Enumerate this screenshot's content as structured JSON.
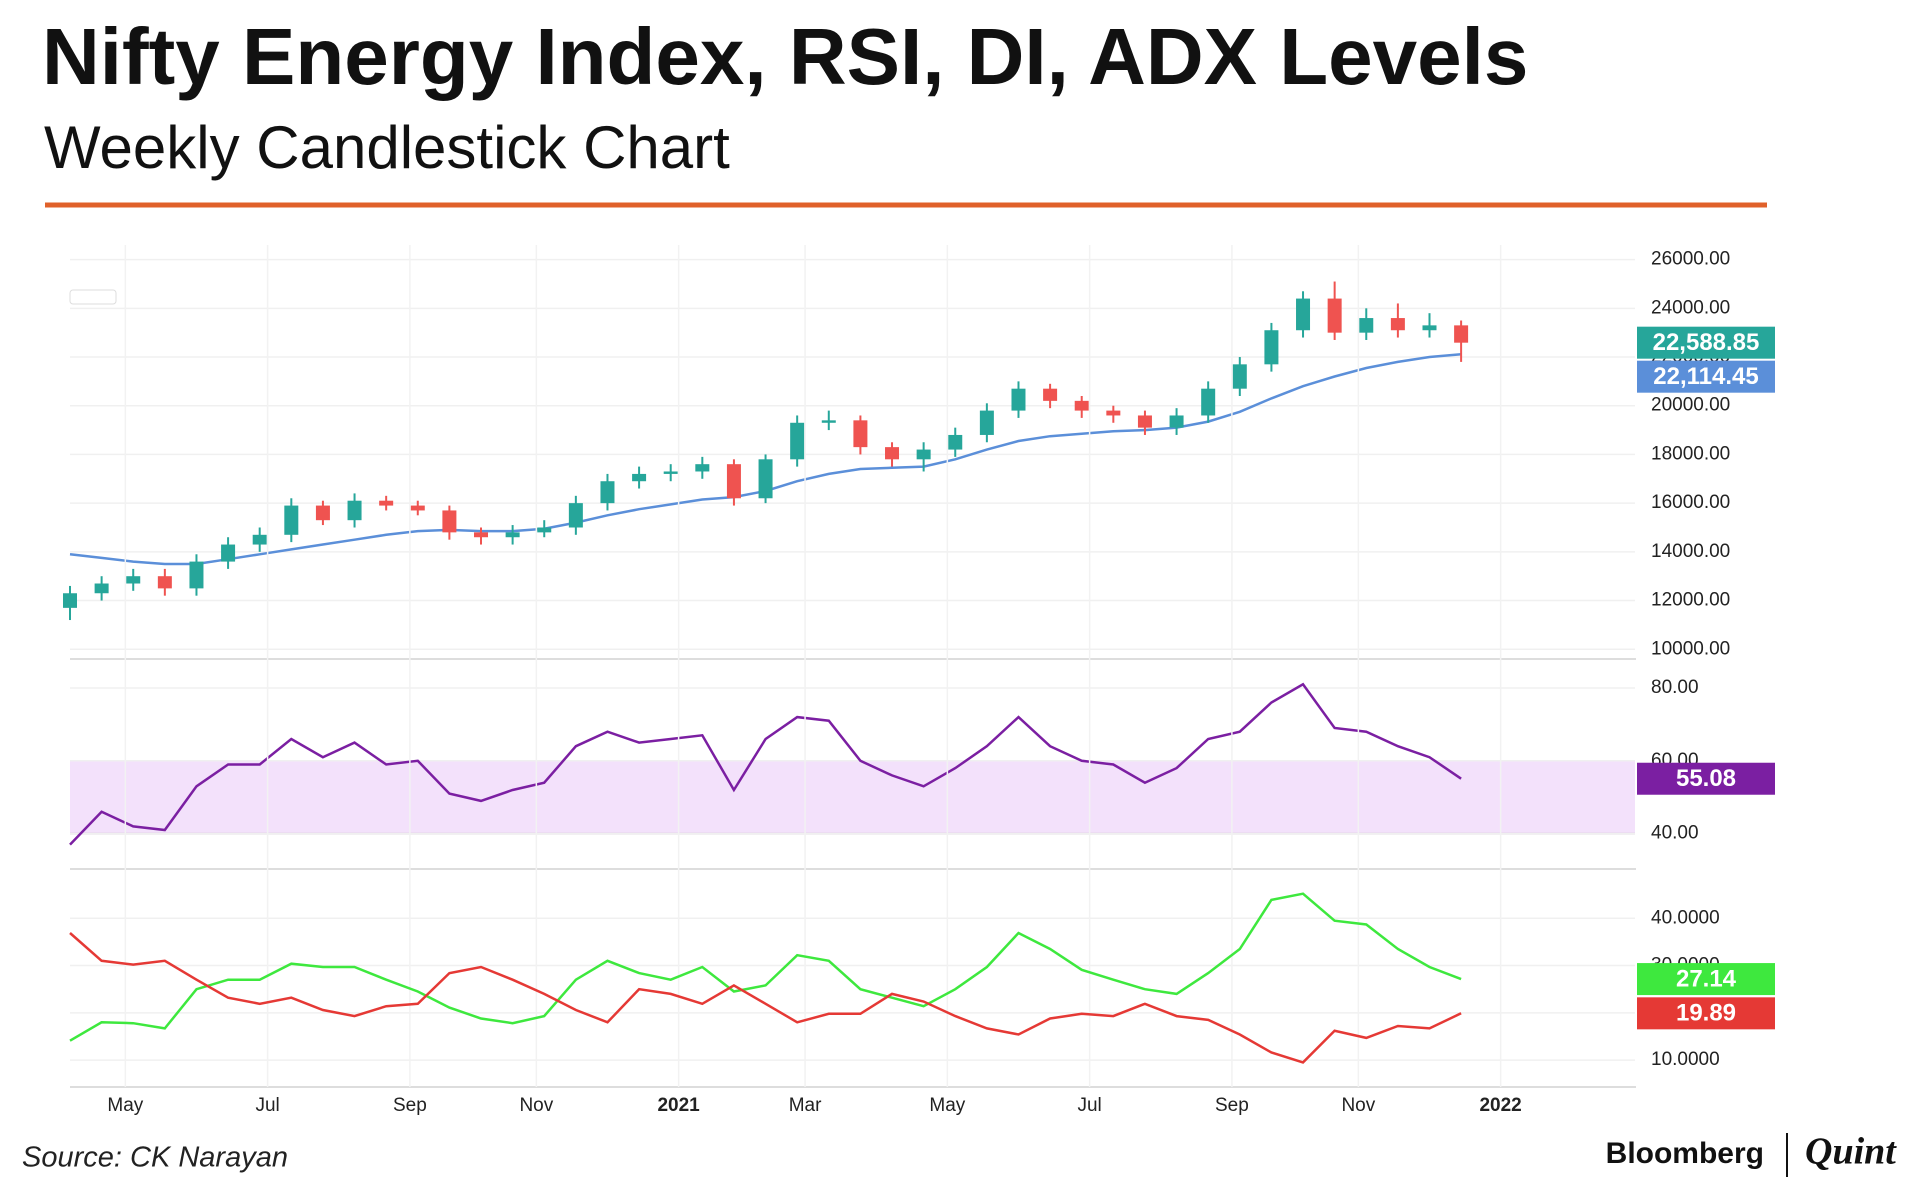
{
  "header": {
    "title": "Nifty Energy Index, RSI, DI, ADX Levels",
    "subtitle": "Weekly Candlestick Chart"
  },
  "footer": {
    "source": "Source: CK Narayan",
    "brand": "Bloomberg",
    "brand2": "Quint"
  },
  "chart_data": [
    {
      "type": "candlestick",
      "xlim": [
        0,
        99
      ],
      "ylim": [
        9600,
        26600
      ],
      "yticks": [
        {
          "value": 10000,
          "label": "10000.00"
        },
        {
          "value": 12000,
          "label": "12000.00"
        },
        {
          "value": 14000,
          "label": "14000.00"
        },
        {
          "value": 16000,
          "label": "16000.00"
        },
        {
          "value": 18000,
          "label": "18000.00"
        },
        {
          "value": 20000,
          "label": "20000.00"
        },
        {
          "value": 22000,
          "label": "22000.00"
        },
        {
          "value": 24000,
          "label": "24000.00"
        },
        {
          "value": 26000,
          "label": "26000.00"
        }
      ],
      "up_color": "#26a69a",
      "down_color": "#ef5350",
      "grid": true,
      "x": [
        0,
        2,
        4,
        6,
        8,
        10,
        12,
        14,
        16,
        18,
        20,
        22,
        24,
        26,
        28,
        30,
        32,
        34,
        36,
        38,
        40,
        42,
        44,
        46,
        48,
        50,
        52,
        54,
        56,
        58,
        60,
        62,
        64,
        66,
        68,
        70,
        72,
        74,
        76,
        78,
        80,
        82,
        84,
        86,
        88
      ],
      "open": [
        11700,
        12300,
        12700,
        13000,
        12500,
        13600,
        14300,
        14700,
        15900,
        15300,
        16100,
        15900,
        15700,
        14800,
        14600,
        14800,
        15000,
        16000,
        16900,
        17200,
        17300,
        17600,
        16200,
        17800,
        19300,
        19400,
        18300,
        17800,
        18200,
        18800,
        19800,
        20700,
        20200,
        19800,
        19600,
        19100,
        19600,
        20700,
        21700,
        23100,
        24400,
        23000,
        23600,
        23100,
        23300
      ],
      "high": [
        12600,
        13000,
        13300,
        13300,
        13900,
        14600,
        15000,
        16200,
        16100,
        16400,
        16300,
        16100,
        15900,
        15000,
        15100,
        15300,
        16300,
        17200,
        17500,
        17600,
        17900,
        17800,
        18000,
        19600,
        19800,
        19600,
        18500,
        18500,
        19100,
        20100,
        21000,
        20900,
        20400,
        20000,
        19800,
        19900,
        21000,
        22000,
        23400,
        24700,
        25100,
        24000,
        24200,
        23800,
        23500
      ],
      "low": [
        11200,
        12000,
        12400,
        12200,
        12200,
        13300,
        14000,
        14400,
        15100,
        15000,
        15700,
        15500,
        14500,
        14300,
        14300,
        14600,
        14700,
        15700,
        16600,
        16900,
        17000,
        15900,
        16000,
        17500,
        19000,
        18000,
        17500,
        17300,
        17900,
        18500,
        19500,
        19900,
        19500,
        19300,
        18800,
        18800,
        19300,
        20400,
        21400,
        22800,
        22700,
        22700,
        22800,
        22800,
        21800
      ],
      "close": [
        12300,
        12700,
        13000,
        12500,
        13600,
        14300,
        14700,
        15900,
        15300,
        16100,
        15900,
        15700,
        14800,
        14600,
        14800,
        15000,
        16000,
        16900,
        17200,
        17300,
        17600,
        16200,
        17800,
        19300,
        19400,
        18300,
        17800,
        18200,
        18800,
        19800,
        20700,
        20200,
        19800,
        19600,
        19100,
        19600,
        20700,
        21700,
        23100,
        24400,
        23000,
        23600,
        23100,
        23300,
        22588.85
      ],
      "close_label": "22,588.85",
      "ma": {
        "color": "#5b8fd9",
        "last_label": "22,114.45",
        "values": [
          13900,
          13750,
          13600,
          13500,
          13500,
          13700,
          13900,
          14100,
          14300,
          14500,
          14700,
          14850,
          14900,
          14850,
          14850,
          14950,
          15200,
          15500,
          15750,
          15950,
          16150,
          16250,
          16500,
          16900,
          17200,
          17400,
          17450,
          17500,
          17800,
          18200,
          18550,
          18750,
          18850,
          18950,
          19000,
          19100,
          19350,
          19750,
          20300,
          20800,
          21200,
          21550,
          21800,
          22000,
          22114.45
        ]
      }
    },
    {
      "type": "line",
      "xlim": [
        0,
        99
      ],
      "ylim": [
        30.3,
        87.4
      ],
      "yticks": [
        {
          "value": 40,
          "label": "40.00"
        },
        {
          "value": 60,
          "label": "60.00"
        },
        {
          "value": 80,
          "label": "80.00"
        }
      ],
      "band": [
        40,
        60
      ],
      "band_color": "#f3e1fb",
      "grid": true,
      "x": [
        0,
        2,
        4,
        6,
        8,
        10,
        12,
        14,
        16,
        18,
        20,
        22,
        24,
        26,
        28,
        30,
        32,
        34,
        36,
        38,
        40,
        42,
        44,
        46,
        48,
        50,
        52,
        54,
        56,
        58,
        60,
        62,
        64,
        66,
        68,
        70,
        72,
        74,
        76,
        78,
        80,
        82,
        84,
        86,
        88
      ],
      "series": [
        {
          "color": "#7b1fa2",
          "values": [
            37,
            46,
            42,
            41,
            53,
            59,
            59,
            66,
            61,
            65,
            59,
            60,
            51,
            49,
            52,
            54,
            64,
            68,
            65,
            66,
            67,
            52,
            66,
            72,
            71,
            60,
            56,
            53,
            58,
            64,
            72,
            64,
            60,
            59,
            54,
            58,
            66,
            68,
            76,
            81,
            69,
            68,
            64,
            61,
            55.08
          ]
        }
      ]
    },
    {
      "type": "line",
      "xlim": [
        0,
        99
      ],
      "ylim": [
        4.3,
        49.8
      ],
      "yticks": [
        {
          "value": 10,
          "label": "10.0000"
        },
        {
          "value": 20,
          "label": "20.0000"
        },
        {
          "value": 30,
          "label": "30.0000"
        },
        {
          "value": 40,
          "label": "40.0000"
        }
      ],
      "grid": true,
      "xticks": [
        {
          "value": 3.5,
          "label": "May"
        },
        {
          "value": 12.5,
          "label": "Jul"
        },
        {
          "value": 21.5,
          "label": "Sep"
        },
        {
          "value": 29.5,
          "label": "Nov"
        },
        {
          "value": 38.5,
          "label": "2021"
        },
        {
          "value": 46.5,
          "label": "Mar"
        },
        {
          "value": 55.5,
          "label": "May"
        },
        {
          "value": 64.5,
          "label": "Jul"
        },
        {
          "value": 73.5,
          "label": "Sep"
        },
        {
          "value": 81.5,
          "label": "Nov"
        },
        {
          "value": 90.5,
          "label": "2022"
        }
      ],
      "x": [
        0,
        2,
        4,
        6,
        8,
        10,
        12,
        14,
        16,
        18,
        20,
        22,
        24,
        26,
        28,
        30,
        32,
        34,
        36,
        38,
        40,
        42,
        44,
        46,
        48,
        50,
        52,
        54,
        56,
        58,
        60,
        62,
        64,
        66,
        68,
        70,
        72,
        74,
        76,
        78,
        80,
        82,
        84,
        86,
        88
      ],
      "series": [
        {
          "color": "#3ee83e",
          "values": [
            14.1,
            18,
            17.8,
            16.7,
            25,
            27,
            27,
            30.4,
            29.7,
            29.7,
            27,
            24.5,
            21.1,
            18.8,
            17.8,
            19.3,
            27,
            31,
            28.4,
            27,
            29.7,
            24.5,
            25.8,
            32.2,
            31,
            25,
            23.2,
            21.4,
            25,
            29.7,
            36.9,
            33.5,
            29.1,
            27,
            25,
            24,
            28.4,
            33.5,
            43.9,
            45.2,
            39.5,
            38.7,
            33.5,
            29.7,
            27.14
          ]
        },
        {
          "color": "#e53935",
          "values": [
            36.9,
            31,
            30.2,
            31,
            27,
            23.2,
            21.9,
            23.2,
            20.6,
            19.3,
            21.4,
            21.9,
            28.4,
            29.7,
            27,
            24,
            20.6,
            18,
            25,
            24,
            21.9,
            25.8,
            21.9,
            18,
            19.8,
            19.8,
            24,
            22.4,
            19.3,
            16.7,
            15.4,
            18.8,
            19.8,
            19.3,
            21.9,
            19.3,
            18.5,
            15.4,
            11.6,
            9.5,
            16.2,
            14.7,
            17.2,
            16.7,
            19.89
          ]
        }
      ]
    }
  ]
}
